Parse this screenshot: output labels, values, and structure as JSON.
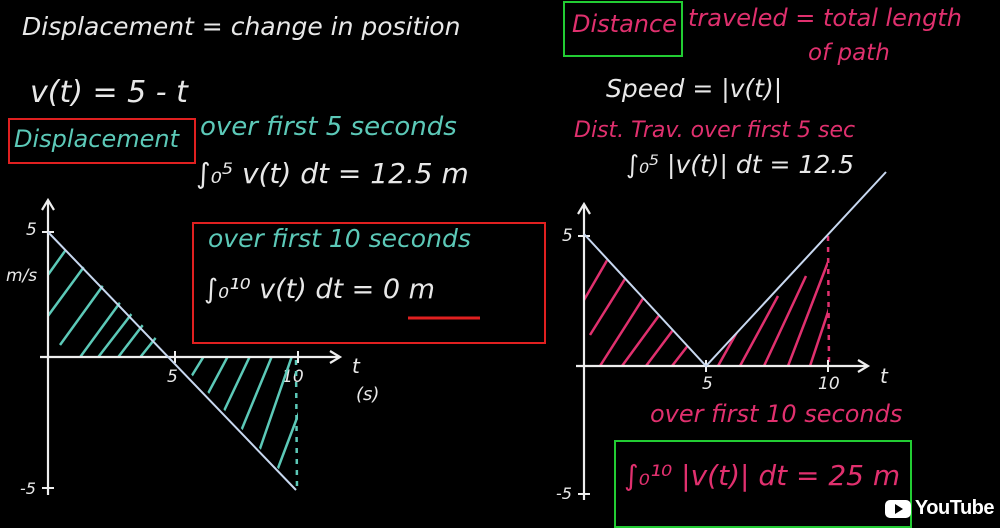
{
  "left": {
    "definition": "Displacement = change in position",
    "velocity": "v(t) = 5 - t",
    "displacement_label": "Displacement",
    "over_first_5": "over first 5 seconds",
    "integral_5": "∫₀⁵ v(t) dt = 12.5 m",
    "over_first_10": "over first 10 seconds",
    "integral_10": "∫₀¹⁰ v(t) dt = 0 m",
    "y_unit": "m/s",
    "t_label": "t",
    "t_unit": "(s)",
    "tick_y_top": "5",
    "tick_y_bottom": "-5",
    "tick_x_5": "5",
    "tick_x_10": "10"
  },
  "right": {
    "distance_label": "Distance",
    "distance_def": "traveled = total length",
    "distance_def2": "of path",
    "speed": "Speed = |v(t)|",
    "dist_first_5": "Dist. Trav. over first 5 sec",
    "integral_5": "∫₀⁵ |v(t)| dt = 12.5",
    "over_first_10": "over first 10 seconds",
    "integral_10": "∫₀¹⁰ |v(t)| dt = 25 m",
    "t_label": "t",
    "tick_y_top": "5",
    "tick_y_bottom": "-5",
    "tick_x_5": "5",
    "tick_x_10": "10"
  },
  "watermark": {
    "text": "YouTube"
  },
  "colors": {
    "teal": "#5cc9b8",
    "pink": "#e0306e",
    "red_box": "#e02020",
    "green_box": "#22cc33"
  }
}
